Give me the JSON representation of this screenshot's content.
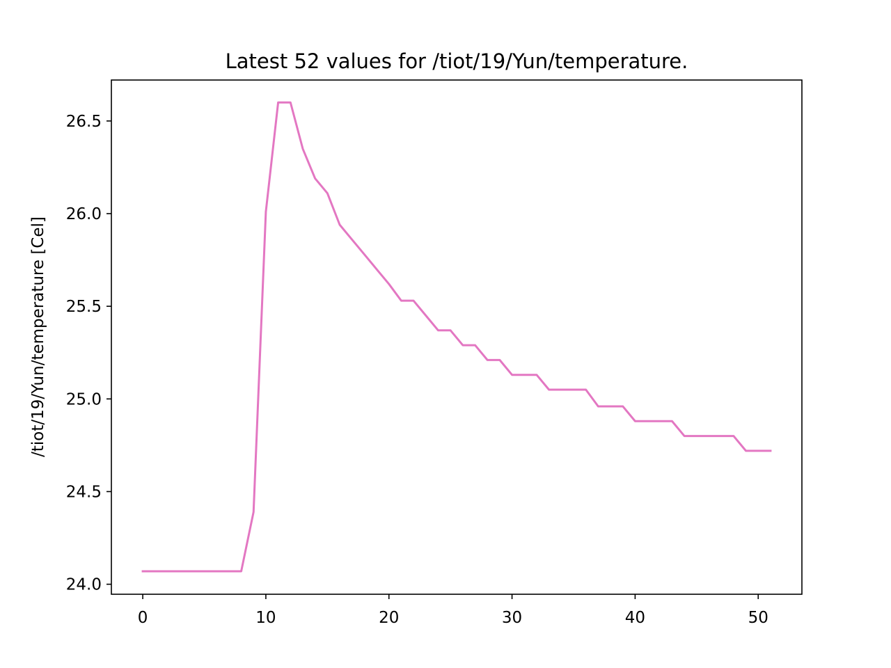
{
  "chart_data": {
    "type": "line",
    "title": "Latest 52 values for /tiot/19/Yun/temperature.",
    "xlabel": "",
    "ylabel": "/tiot/19/Yun/temperature [Cel]",
    "xlim": [
      -2.55,
      53.55
    ],
    "ylim": [
      23.946,
      26.721
    ],
    "xticks": [
      0,
      10,
      20,
      30,
      40,
      50
    ],
    "yticks": [
      24.0,
      24.5,
      25.0,
      25.5,
      26.0,
      26.5
    ],
    "ytick_labels": [
      "24.0",
      "24.5",
      "25.0",
      "25.5",
      "26.0",
      "26.5"
    ],
    "grid": false,
    "series": [
      {
        "color": "#e377c2",
        "x": [
          0,
          1,
          2,
          3,
          4,
          5,
          6,
          7,
          8,
          9,
          10,
          11,
          12,
          13,
          14,
          15,
          16,
          17,
          18,
          19,
          20,
          21,
          22,
          23,
          24,
          25,
          26,
          27,
          28,
          29,
          30,
          31,
          32,
          33,
          34,
          35,
          36,
          37,
          38,
          39,
          40,
          41,
          42,
          43,
          44,
          45,
          46,
          47,
          48,
          49,
          50,
          51
        ],
        "values": [
          24.07,
          24.07,
          24.07,
          24.07,
          24.07,
          24.07,
          24.07,
          24.07,
          24.07,
          24.39,
          26.01,
          26.6,
          26.6,
          26.35,
          26.19,
          26.11,
          25.94,
          25.86,
          25.78,
          25.7,
          25.62,
          25.53,
          25.53,
          25.45,
          25.37,
          25.37,
          25.29,
          25.29,
          25.21,
          25.21,
          25.13,
          25.13,
          25.13,
          25.05,
          25.05,
          25.05,
          25.05,
          24.96,
          24.96,
          24.96,
          24.88,
          24.88,
          24.88,
          24.88,
          24.8,
          24.8,
          24.8,
          24.8,
          24.8,
          24.72,
          24.72,
          24.72
        ]
      }
    ]
  }
}
